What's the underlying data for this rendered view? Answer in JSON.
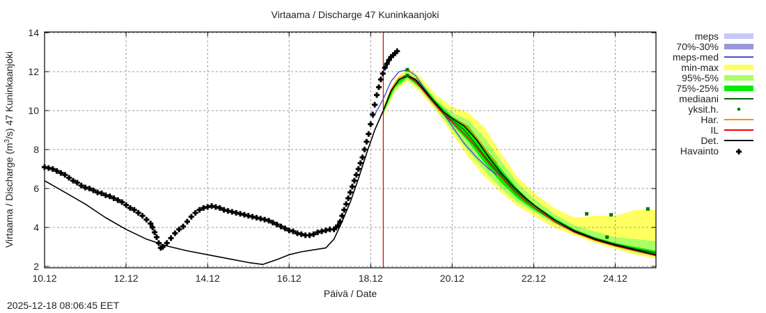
{
  "chart_data": {
    "type": "line",
    "title": "Virtaama / Discharge  47 Kuninkaanjoki",
    "xlabel": "Päivä / Date",
    "ylabel": "Virtaama / Discharge (m³/s)  47 Kuninkaanjoki",
    "ylabel_parts": {
      "pre": "Virtaama / Discharge (m",
      "sup": "3",
      "post": "/s)  47 Kuninkaanjoki"
    },
    "x_unit": "days since 10.12",
    "xlim": [
      0,
      15
    ],
    "ylim": [
      2,
      14
    ],
    "grid": true,
    "legend_position": "right",
    "x_ticks": [
      {
        "value": 0,
        "label": "10.12"
      },
      {
        "value": 2,
        "label": "12.12"
      },
      {
        "value": 4,
        "label": "14.12"
      },
      {
        "value": 6,
        "label": "16.12"
      },
      {
        "value": 8,
        "label": "18.12"
      },
      {
        "value": 10,
        "label": "20.12"
      },
      {
        "value": 12,
        "label": "22.12"
      },
      {
        "value": 14,
        "label": "24.12"
      }
    ],
    "y_ticks": [
      {
        "value": 2,
        "label": "2"
      },
      {
        "value": 4,
        "label": "4"
      },
      {
        "value": 6,
        "label": "6"
      },
      {
        "value": 8,
        "label": "8"
      },
      {
        "value": 10,
        "label": "10"
      },
      {
        "value": 12,
        "label": "12"
      },
      {
        "value": 14,
        "label": "14"
      }
    ],
    "forecast_start": 8.31,
    "forecast_start_color": "#dd0000",
    "legend": [
      {
        "label": "meps",
        "kind": "band",
        "color": "#c8c8f8"
      },
      {
        "label": "70%-30%",
        "kind": "band",
        "color": "#9898d8"
      },
      {
        "label": "meps-med",
        "kind": "line",
        "color": "#4a4ad0"
      },
      {
        "label": "min-max",
        "kind": "band",
        "color": "#ffff60"
      },
      {
        "label": "95%-5%",
        "kind": "band",
        "color": "#aaff66"
      },
      {
        "label": "75%-25%",
        "kind": "band",
        "color": "#00ee00"
      },
      {
        "label": "mediaani",
        "kind": "line",
        "color": "#006600"
      },
      {
        "label": "yksit.h.",
        "kind": "point",
        "color": "#007700"
      },
      {
        "label": "Har.",
        "kind": "line",
        "color": "#ff8800"
      },
      {
        "label": "IL",
        "kind": "line",
        "color": "#ee0000"
      },
      {
        "label": "Det.",
        "kind": "line",
        "color": "#000000"
      },
      {
        "label": "Havainto",
        "kind": "cross",
        "color": "#000000"
      }
    ],
    "bands": {
      "min_max": {
        "x": [
          8.31,
          8.6,
          8.9,
          9.2,
          9.6,
          10.0,
          10.4,
          10.8,
          11.2,
          11.6,
          12.0,
          12.5,
          13.0,
          13.5,
          14.0,
          14.5,
          15.0
        ],
        "upper": [
          10.3,
          11.6,
          12.2,
          11.8,
          10.8,
          10.2,
          9.9,
          9.1,
          7.8,
          6.6,
          5.8,
          5.0,
          4.5,
          4.6,
          4.6,
          4.9,
          4.9
        ],
        "lower": [
          9.7,
          11.0,
          11.5,
          11.0,
          10.0,
          8.8,
          7.6,
          6.6,
          5.8,
          5.1,
          4.6,
          4.0,
          3.6,
          3.2,
          2.9,
          2.6,
          2.4
        ]
      },
      "p95_5": {
        "x": [
          8.31,
          8.6,
          8.9,
          9.2,
          9.6,
          10.0,
          10.4,
          10.8,
          11.2,
          11.6,
          12.0,
          12.5,
          13.0,
          13.5,
          14.0,
          14.5,
          15.0
        ],
        "upper": [
          10.2,
          11.5,
          12.0,
          11.6,
          10.6,
          9.9,
          9.5,
          8.6,
          7.4,
          6.3,
          5.5,
          4.7,
          4.1,
          3.8,
          3.5,
          3.4,
          3.3
        ],
        "lower": [
          9.8,
          11.1,
          11.6,
          11.1,
          10.1,
          9.0,
          7.9,
          6.9,
          6.0,
          5.3,
          4.8,
          4.2,
          3.7,
          3.3,
          3.0,
          2.7,
          2.5
        ]
      },
      "p75_25": {
        "x": [
          8.31,
          8.6,
          8.9,
          9.2,
          9.6,
          10.0,
          10.4,
          10.8,
          11.2,
          11.6,
          12.0,
          12.5,
          13.0,
          13.5,
          14.0,
          14.5,
          15.0
        ],
        "upper": [
          10.1,
          11.4,
          11.9,
          11.5,
          10.5,
          9.7,
          9.2,
          8.1,
          7.0,
          6.0,
          5.2,
          4.5,
          3.9,
          3.5,
          3.2,
          3.0,
          2.8
        ],
        "lower": [
          9.9,
          11.2,
          11.7,
          11.2,
          10.2,
          9.3,
          8.4,
          7.3,
          6.3,
          5.5,
          4.9,
          4.3,
          3.8,
          3.4,
          3.1,
          2.8,
          2.6
        ]
      }
    },
    "series": [
      {
        "name": "Havainto",
        "kind": "cross",
        "color": "#000000",
        "x": [
          0.0,
          0.1,
          0.2,
          0.3,
          0.4,
          0.5,
          0.6,
          0.7,
          0.8,
          0.9,
          1.0,
          1.1,
          1.2,
          1.3,
          1.4,
          1.5,
          1.6,
          1.7,
          1.8,
          1.9,
          2.0,
          2.1,
          2.2,
          2.3,
          2.4,
          2.5,
          2.6,
          2.65,
          2.7,
          2.75,
          2.8,
          2.85,
          2.9,
          3.0,
          3.1,
          3.2,
          3.3,
          3.4,
          3.5,
          3.6,
          3.7,
          3.8,
          3.9,
          4.0,
          4.1,
          4.2,
          4.3,
          4.4,
          4.5,
          4.6,
          4.7,
          4.8,
          4.9,
          5.0,
          5.1,
          5.2,
          5.3,
          5.4,
          5.5,
          5.6,
          5.7,
          5.8,
          5.9,
          6.0,
          6.1,
          6.2,
          6.3,
          6.4,
          6.5,
          6.6,
          6.7,
          6.8,
          6.9,
          7.0,
          7.1,
          7.15,
          7.2,
          7.25,
          7.3,
          7.35,
          7.4,
          7.45,
          7.5,
          7.55,
          7.6,
          7.65,
          7.7,
          7.75,
          7.8,
          7.85,
          7.9,
          7.95,
          8.0,
          8.05,
          8.1,
          8.15,
          8.2,
          8.25,
          8.3,
          8.35,
          8.4,
          8.45,
          8.5,
          8.55,
          8.6,
          8.65
        ],
        "y": [
          7.1,
          7.05,
          7.0,
          6.9,
          6.8,
          6.7,
          6.55,
          6.4,
          6.3,
          6.15,
          6.05,
          6.0,
          5.9,
          5.8,
          5.75,
          5.65,
          5.6,
          5.5,
          5.4,
          5.3,
          5.15,
          5.0,
          4.9,
          4.75,
          4.6,
          4.4,
          4.2,
          4.0,
          3.75,
          3.5,
          3.2,
          2.95,
          3.0,
          3.2,
          3.45,
          3.7,
          3.9,
          4.05,
          4.3,
          4.55,
          4.75,
          4.9,
          5.0,
          5.05,
          5.1,
          5.05,
          5.0,
          4.9,
          4.85,
          4.8,
          4.75,
          4.7,
          4.65,
          4.6,
          4.55,
          4.5,
          4.45,
          4.4,
          4.35,
          4.25,
          4.15,
          4.05,
          3.95,
          3.85,
          3.8,
          3.7,
          3.65,
          3.6,
          3.6,
          3.65,
          3.75,
          3.8,
          3.85,
          3.9,
          3.9,
          4.0,
          4.1,
          4.3,
          4.6,
          4.9,
          5.2,
          5.5,
          5.8,
          6.1,
          6.4,
          6.7,
          7.0,
          7.3,
          7.6,
          8.0,
          8.4,
          8.8,
          9.3,
          9.8,
          10.3,
          10.8,
          11.2,
          11.6,
          11.9,
          12.2,
          12.4,
          12.6,
          12.75,
          12.85,
          12.95,
          13.05
        ]
      },
      {
        "name": "Det.",
        "kind": "line",
        "color": "#000000",
        "x": [
          0.0,
          0.5,
          1.0,
          1.5,
          2.0,
          2.5,
          3.0,
          3.5,
          4.0,
          4.5,
          5.0,
          5.35,
          5.7,
          6.0,
          6.3,
          6.6,
          6.9,
          7.1,
          7.3,
          7.5,
          7.7,
          7.9,
          8.1,
          8.31,
          8.5,
          8.7,
          8.9,
          9.1,
          9.3,
          9.5,
          9.8,
          10.0,
          10.3,
          10.6,
          10.9,
          11.2,
          11.5,
          11.8,
          12.1,
          12.5,
          13.0,
          13.5,
          14.0,
          14.5,
          15.0
        ],
        "y": [
          6.4,
          5.8,
          5.2,
          4.5,
          3.9,
          3.4,
          3.05,
          2.8,
          2.6,
          2.4,
          2.2,
          2.1,
          2.35,
          2.6,
          2.75,
          2.85,
          2.95,
          3.4,
          4.3,
          5.3,
          6.5,
          7.8,
          9.0,
          10.0,
          11.0,
          11.6,
          11.8,
          11.6,
          11.1,
          10.6,
          9.9,
          9.6,
          9.2,
          8.5,
          7.6,
          6.8,
          6.1,
          5.5,
          5.0,
          4.4,
          3.8,
          3.4,
          3.1,
          2.85,
          2.6
        ]
      },
      {
        "name": "IL",
        "kind": "line",
        "color": "#ee0000",
        "x": [
          8.31,
          8.5,
          8.7,
          8.9,
          9.1,
          9.3,
          9.5,
          9.8,
          10.0,
          10.3,
          10.6,
          10.9,
          11.2,
          11.5,
          11.8,
          12.1,
          12.5,
          13.0,
          13.5,
          14.0,
          14.5,
          15.0
        ],
        "y": [
          10.0,
          11.0,
          11.6,
          11.75,
          11.5,
          11.0,
          10.5,
          9.8,
          9.4,
          8.8,
          8.1,
          7.3,
          6.6,
          5.9,
          5.35,
          4.9,
          4.3,
          3.75,
          3.35,
          3.05,
          2.8,
          2.55
        ]
      },
      {
        "name": "Har.",
        "kind": "line",
        "color": "#ff8800",
        "x": [
          8.31,
          8.5,
          8.7,
          8.9,
          9.1,
          9.3,
          9.5,
          9.8,
          10.0,
          10.3,
          10.6,
          10.9,
          11.1
        ],
        "y": [
          10.0,
          11.1,
          11.7,
          11.85,
          11.6,
          11.1,
          10.6,
          9.9,
          9.6,
          9.3,
          8.6,
          7.8,
          7.3
        ]
      },
      {
        "name": "mediaani",
        "kind": "line",
        "color": "#006600",
        "x": [
          8.31,
          8.5,
          8.7,
          8.9,
          9.1,
          9.3,
          9.5,
          9.8,
          10.0,
          10.3,
          10.6,
          10.9,
          11.2,
          11.5,
          11.8,
          12.1,
          12.5,
          13.0,
          13.5,
          14.0,
          14.5,
          15.0
        ],
        "y": [
          10.0,
          11.0,
          11.6,
          11.8,
          11.55,
          11.05,
          10.5,
          9.8,
          9.5,
          9.0,
          8.2,
          7.4,
          6.7,
          6.0,
          5.45,
          5.0,
          4.4,
          3.85,
          3.45,
          3.15,
          2.9,
          2.7
        ]
      },
      {
        "name": "meps-med",
        "kind": "line",
        "color": "#4a4ad0",
        "x": [
          8.05,
          8.31,
          8.5,
          8.7,
          8.9,
          9.1,
          9.3,
          9.5,
          9.8,
          10.0,
          10.3,
          10.6,
          10.9,
          11.1
        ],
        "y": [
          9.6,
          10.6,
          11.5,
          12.0,
          12.1,
          11.8,
          11.2,
          10.6,
          9.8,
          9.2,
          8.3,
          7.6,
          7.0,
          6.7
        ]
      }
    ],
    "single_members": {
      "name": "yksit.h.",
      "color": "#007700",
      "x": [
        8.9,
        8.9,
        13.3,
        13.9,
        14.8,
        13.8
      ],
      "y": [
        12.1,
        11.8,
        4.7,
        4.65,
        4.95,
        3.5
      ]
    }
  },
  "footer": {
    "timestamp": "2025-12-18 08:06:45 EET"
  }
}
